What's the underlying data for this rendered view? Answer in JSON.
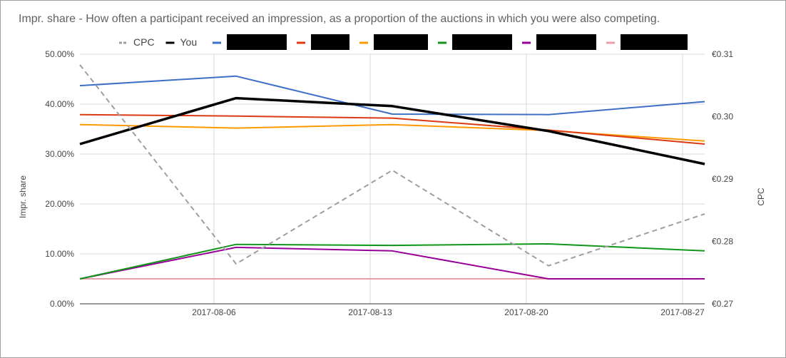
{
  "chart_data": {
    "type": "line",
    "title": "Impr. share - How often a participant received an impression, as a proportion of the auctions in which you were also competing.",
    "y_left": {
      "label": "Impr. share",
      "ylim": [
        0,
        50
      ],
      "ticks": [
        "0.00%",
        "10.00%",
        "20.00%",
        "30.00%",
        "40.00%",
        "50.00%"
      ]
    },
    "y_right": {
      "label": "CPC",
      "ylim": [
        0.27,
        0.31
      ],
      "ticks": [
        "€0.27",
        "€0.28",
        "€0.29",
        "€0.30",
        "€0.31"
      ]
    },
    "x_ticks": [
      "2017-08-06",
      "2017-08-13",
      "2017-08-20",
      "2017-08-27"
    ],
    "x": [
      "2017-07-31",
      "2017-08-07",
      "2017-08-14",
      "2017-08-21",
      "2017-08-28"
    ],
    "grid": true,
    "legend_position": "top",
    "series": [
      {
        "name": "CPC",
        "axis": "right",
        "color": "#9e9e9e",
        "dashed": true,
        "values": [
          0.3083,
          0.2764,
          0.2914,
          0.2761,
          0.2844
        ]
      },
      {
        "name": "You",
        "axis": "left",
        "color": "#000000",
        "width": 3.5,
        "values": [
          32.0,
          41.2,
          39.6,
          34.6,
          28.0
        ]
      },
      {
        "name": "",
        "axis": "left",
        "color": "#3e6fc6",
        "values": [
          43.7,
          45.6,
          38.0,
          37.9,
          40.5
        ]
      },
      {
        "name": "",
        "axis": "left",
        "color": "#dc3912",
        "values": [
          37.9,
          37.6,
          37.2,
          34.8,
          32.0
        ]
      },
      {
        "name": "",
        "axis": "left",
        "color": "#ff9900",
        "values": [
          35.9,
          35.2,
          35.9,
          34.7,
          32.6
        ]
      },
      {
        "name": "",
        "axis": "left",
        "color": "#109618",
        "values": [
          5.0,
          11.9,
          11.7,
          12.0,
          10.6
        ]
      },
      {
        "name": "",
        "axis": "left",
        "color": "#990099",
        "values": [
          5.0,
          11.3,
          10.6,
          5.0,
          5.0
        ]
      },
      {
        "name": "",
        "axis": "left",
        "color": "#e8a0a8",
        "values": [
          5.0,
          5.0,
          5.0,
          5.0,
          5.0
        ]
      }
    ]
  }
}
